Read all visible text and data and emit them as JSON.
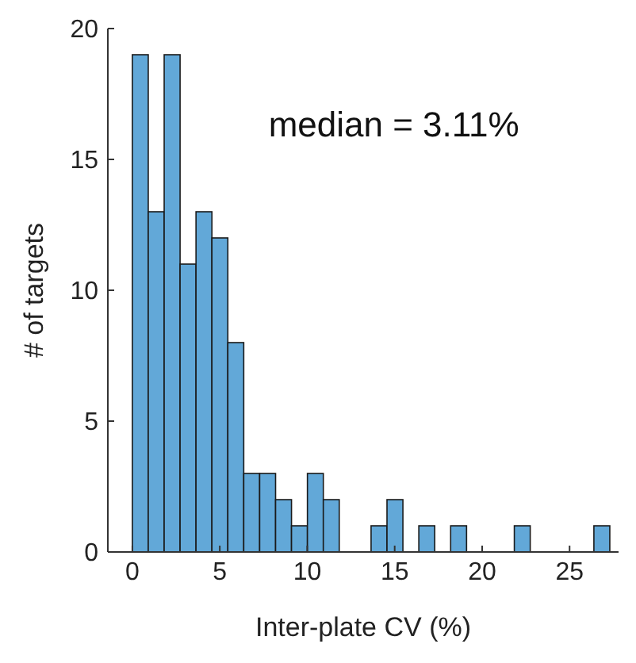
{
  "chart_data": {
    "type": "histogram",
    "xlabel": "Inter-plate CV (%)",
    "ylabel": "# of targets",
    "annotations": [
      "median = 3.11%"
    ],
    "bins": [
      0,
      0.91,
      1.82,
      2.73,
      3.64,
      4.55,
      5.46,
      6.37,
      7.28,
      8.19,
      9.1,
      10.01,
      10.92,
      11.83,
      12.74,
      13.65,
      14.56,
      15.47,
      16.38,
      17.29,
      18.2,
      19.11,
      20.02,
      20.93,
      21.84,
      22.75,
      23.66,
      24.57,
      25.48,
      26.39,
      27.3
    ],
    "values": [
      19,
      13,
      19,
      11,
      13,
      12,
      8,
      3,
      3,
      2,
      1,
      3,
      2,
      0,
      0,
      1,
      2,
      0,
      1,
      0,
      1,
      0,
      0,
      0,
      1,
      0,
      0,
      0,
      0,
      1
    ],
    "color": "#62a8d8",
    "xlim": [
      -1.4,
      27.8
    ],
    "xticks": [
      0,
      5,
      10,
      15,
      20,
      25
    ],
    "ylim": [
      0,
      20
    ],
    "yticks": [
      0,
      5,
      10,
      15,
      20
    ],
    "grid": false
  }
}
